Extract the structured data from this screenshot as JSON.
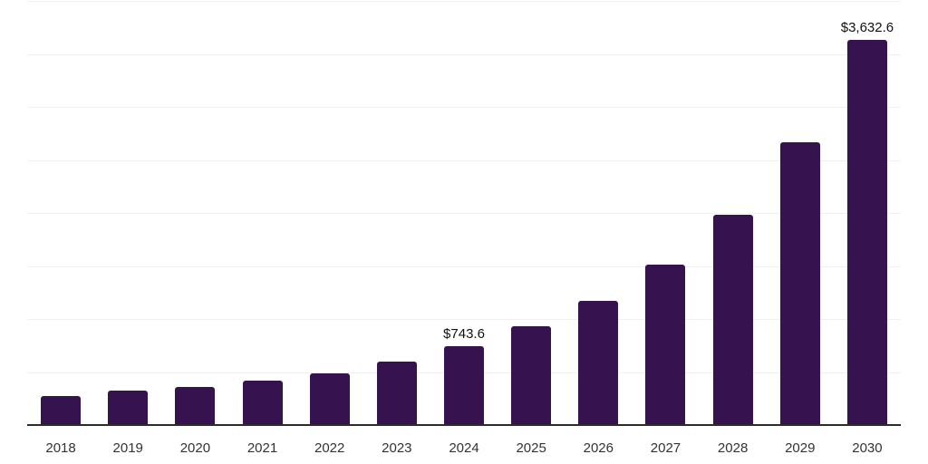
{
  "chart_data": {
    "type": "bar",
    "categories": [
      "2018",
      "2019",
      "2020",
      "2021",
      "2022",
      "2023",
      "2024",
      "2025",
      "2026",
      "2027",
      "2028",
      "2029",
      "2030"
    ],
    "values": [
      270,
      325,
      355,
      420,
      490,
      600,
      743.6,
      935,
      1170,
      1510,
      1985,
      2670,
      3632.6
    ],
    "annotations": [
      {
        "category": "2024",
        "text": "$743.6"
      },
      {
        "category": "2030",
        "text": "$3,632.6"
      }
    ],
    "title": "",
    "xlabel": "",
    "ylabel": "",
    "ylim": [
      0,
      4000
    ],
    "gridline_step": 500,
    "grid": true,
    "legend_position": "none",
    "y_axis_labels_visible": false,
    "colors": {
      "bar": "#36124E",
      "axis_line": "#2b2b2b",
      "gridline": "#f0f0f0",
      "tick_label": "#333333",
      "data_label": "#111111",
      "background": "#ffffff"
    }
  }
}
